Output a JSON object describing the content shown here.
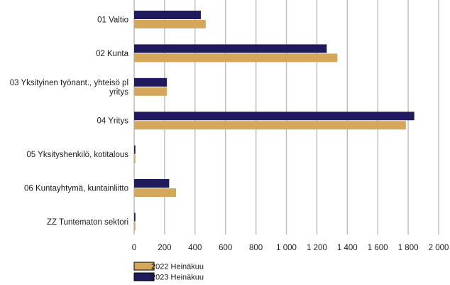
{
  "chart_data": {
    "type": "bar",
    "orientation": "horizontal",
    "categories": [
      "01 Valtio",
      "02 Kunta",
      "03 Yksityinen työnant., yhteisö pl yritys",
      "04 Yritys",
      "05 Yksityshenkilö, kotitalous",
      "06 Kuntayhtymä, kuntainliitto",
      "ZZ Tuntematon sektori"
    ],
    "category_lines": [
      [
        "01 Valtio"
      ],
      [
        "02 Kunta"
      ],
      [
        "03 Yksityinen työnant., yhteisö pl",
        "yritys"
      ],
      [
        "04 Yritys"
      ],
      [
        "05 Yksityshenkilö, kotitalous"
      ],
      [
        "06 Kuntayhtymä, kuntainliitto"
      ],
      [
        "ZZ Tuntematon sektori"
      ]
    ],
    "series": [
      {
        "name": "2023 Heinäkuu",
        "color": "#1f1a5e",
        "values": [
          438,
          1265,
          215,
          1840,
          8,
          230,
          8
        ]
      },
      {
        "name": "2022 Heinäkuu",
        "color": "#d4a75a",
        "values": [
          470,
          1335,
          215,
          1785,
          8,
          275,
          8
        ]
      }
    ],
    "xlim": [
      0,
      2000
    ],
    "xticks": [
      0,
      200,
      400,
      600,
      800,
      1000,
      1200,
      1400,
      1600,
      1800,
      2000
    ],
    "xtick_labels": [
      "0",
      "200",
      "400",
      "600",
      "800",
      "1 000",
      "1 200",
      "1 400",
      "1 600",
      "1 800",
      "2 000"
    ],
    "grid": true,
    "legend_position": "bottom-left",
    "legend": [
      {
        "name": "2022 Heinäkuu",
        "color": "#d4a75a"
      },
      {
        "name": "2023 Heinäkuu",
        "color": "#1f1a5e"
      }
    ]
  }
}
